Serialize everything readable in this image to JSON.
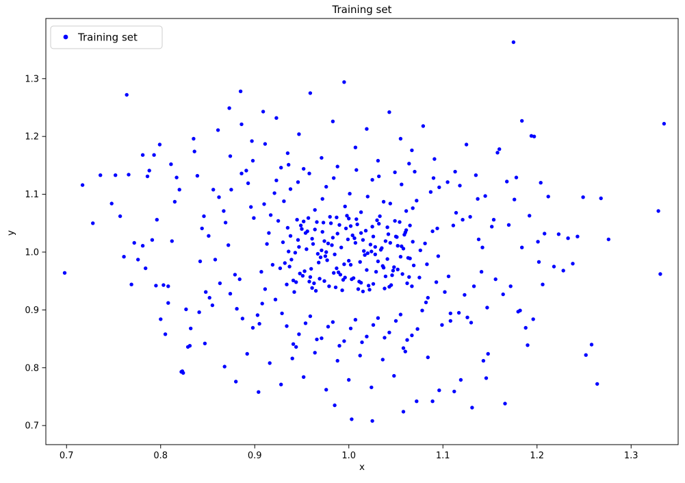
{
  "chart_data": {
    "type": "scatter",
    "title": "Training set",
    "xlabel": "x",
    "ylabel": "y",
    "legend": {
      "label": "Training set",
      "position": "upper left"
    },
    "marker_color": "#0000ff",
    "grid": false,
    "xlim": [
      0.678,
      1.35
    ],
    "ylim": [
      0.667,
      1.404
    ],
    "x_ticks": [
      0.7,
      0.8,
      0.9,
      1.0,
      1.1,
      1.2,
      1.3
    ],
    "y_ticks": [
      0.7,
      0.8,
      0.9,
      1.0,
      1.1,
      1.2,
      1.3
    ],
    "points": [
      [
        0.962,
        1.014
      ],
      [
        0.975,
        0.993
      ],
      [
        0.988,
        1.032
      ],
      [
        1.002,
        0.978
      ],
      [
        1.015,
        1.021
      ],
      [
        1.028,
        0.996
      ],
      [
        1.041,
        1.043
      ],
      [
        0.953,
        0.967
      ],
      [
        0.966,
        1.052
      ],
      [
        0.979,
        0.941
      ],
      [
        0.992,
        1.008
      ],
      [
        1.005,
        0.955
      ],
      [
        1.018,
        1.037
      ],
      [
        1.031,
        0.984
      ],
      [
        1.044,
        1.016
      ],
      [
        1.057,
        0.962
      ],
      [
        0.936,
        1.001
      ],
      [
        0.949,
        1.046
      ],
      [
        0.961,
        0.938
      ],
      [
        0.974,
        1.019
      ],
      [
        0.987,
        0.972
      ],
      [
        1.0,
        1.058
      ],
      [
        1.013,
        0.947
      ],
      [
        1.026,
        1.027
      ],
      [
        1.039,
        0.958
      ],
      [
        1.052,
        1.011
      ],
      [
        1.065,
        0.989
      ],
      [
        0.941,
        0.951
      ],
      [
        0.954,
        1.033
      ],
      [
        0.967,
        0.997
      ],
      [
        0.98,
        1.061
      ],
      [
        0.993,
        0.934
      ],
      [
        1.006,
        1.024
      ],
      [
        1.019,
        0.969
      ],
      [
        1.032,
        1.049
      ],
      [
        1.045,
        0.943
      ],
      [
        1.058,
        1.006
      ],
      [
        0.932,
        0.981
      ],
      [
        0.945,
        1.056
      ],
      [
        0.958,
        0.949
      ],
      [
        0.971,
        1.003
      ],
      [
        0.984,
        0.964
      ],
      [
        0.997,
        1.041
      ],
      [
        1.01,
        0.936
      ],
      [
        1.023,
        1.013
      ],
      [
        1.036,
        0.976
      ],
      [
        1.049,
        1.054
      ],
      [
        1.062,
        0.946
      ],
      [
        0.938,
        1.028
      ],
      [
        0.951,
        0.959
      ],
      [
        0.964,
        1.039
      ],
      [
        0.977,
        0.986
      ],
      [
        0.99,
        1.047
      ],
      [
        1.003,
        0.953
      ],
      [
        1.016,
        1.002
      ],
      [
        1.029,
        0.966
      ],
      [
        1.042,
        1.031
      ],
      [
        1.055,
        0.992
      ],
      [
        1.068,
        1.018
      ],
      [
        0.934,
        0.944
      ],
      [
        0.947,
        1.009
      ],
      [
        0.96,
        0.971
      ],
      [
        0.973,
        1.051
      ],
      [
        0.986,
        0.939
      ],
      [
        0.999,
        1.022
      ],
      [
        1.012,
        0.983
      ],
      [
        1.025,
        1.044
      ],
      [
        1.038,
        0.937
      ],
      [
        1.051,
        1.026
      ],
      [
        1.064,
        0.957
      ],
      [
        0.943,
        0.999
      ],
      [
        0.956,
        1.036
      ],
      [
        0.969,
        0.954
      ],
      [
        0.982,
        1.012
      ],
      [
        0.995,
        0.979
      ],
      [
        1.008,
        1.057
      ],
      [
        1.021,
        0.942
      ],
      [
        1.034,
        1.004
      ],
      [
        1.047,
        0.968
      ],
      [
        1.06,
        1.034
      ],
      [
        0.93,
        1.017
      ],
      [
        0.944,
        0.948
      ],
      [
        0.957,
        1.059
      ],
      [
        0.97,
        0.991
      ],
      [
        0.983,
        1.025
      ],
      [
        0.996,
        0.956
      ],
      [
        1.009,
        1.048
      ],
      [
        1.022,
        0.935
      ],
      [
        1.035,
        1.007
      ],
      [
        1.048,
        0.974
      ],
      [
        1.061,
        1.038
      ],
      [
        0.939,
        0.987
      ],
      [
        0.952,
        1.053
      ],
      [
        0.965,
        0.933
      ],
      [
        0.978,
        1.015
      ],
      [
        0.991,
        0.961
      ],
      [
        1.004,
        1.029
      ],
      [
        1.017,
        0.995
      ],
      [
        1.03,
        1.055
      ],
      [
        1.043,
        0.94
      ],
      [
        1.056,
        1.01
      ],
      [
        1.069,
        0.977
      ],
      [
        0.935,
        1.042
      ],
      [
        0.948,
        0.963
      ],
      [
        0.961,
        1.023
      ],
      [
        0.974,
        0.95
      ],
      [
        0.987,
        1.06
      ],
      [
        1.0,
        0.985
      ],
      [
        1.013,
        1.033
      ],
      [
        1.026,
        0.945
      ],
      [
        1.039,
        1.019
      ],
      [
        1.052,
        0.97
      ],
      [
        1.065,
        1.046
      ],
      [
        0.942,
        0.931
      ],
      [
        0.955,
        1.005
      ],
      [
        0.968,
        0.982
      ],
      [
        0.981,
        1.05
      ],
      [
        0.994,
        0.952
      ],
      [
        1.007,
        1.016
      ],
      [
        1.02,
        0.998
      ],
      [
        1.033,
        1.062
      ],
      [
        1.046,
        0.96
      ],
      [
        1.059,
        1.03
      ],
      [
        0.937,
        0.975
      ],
      [
        0.95,
        1.04
      ],
      [
        0.963,
        0.946
      ],
      [
        0.976,
        1.0
      ],
      [
        0.989,
        0.965
      ],
      [
        1.002,
        1.045
      ],
      [
        1.015,
        0.932
      ],
      [
        1.028,
        1.009
      ],
      [
        1.041,
        0.988
      ],
      [
        1.054,
        1.052
      ],
      [
        1.067,
        0.941
      ],
      [
        0.946,
        1.021
      ],
      [
        0.959,
        0.957
      ],
      [
        0.972,
        1.035
      ],
      [
        0.985,
        0.996
      ],
      [
        0.998,
        1.063
      ],
      [
        1.011,
        0.949
      ],
      [
        1.024,
        1.001
      ],
      [
        1.037,
        0.973
      ],
      [
        1.05,
        1.027
      ],
      [
        1.063,
        0.99
      ],
      [
        0.872,
        1.012
      ],
      [
        0.884,
        0.953
      ],
      [
        0.896,
        1.078
      ],
      [
        0.908,
        0.911
      ],
      [
        0.921,
        1.102
      ],
      [
        0.858,
        0.987
      ],
      [
        0.869,
        1.051
      ],
      [
        0.881,
        0.902
      ],
      [
        0.893,
        1.119
      ],
      [
        0.905,
        0.876
      ],
      [
        0.917,
        1.064
      ],
      [
        0.929,
        0.894
      ],
      [
        0.862,
        1.095
      ],
      [
        0.874,
        0.928
      ],
      [
        0.886,
        1.136
      ],
      [
        0.898,
        0.869
      ],
      [
        0.91,
        1.083
      ],
      [
        0.922,
        0.918
      ],
      [
        0.851,
        1.028
      ],
      [
        0.863,
        0.946
      ],
      [
        0.875,
        1.108
      ],
      [
        0.887,
        0.885
      ],
      [
        0.899,
        1.059
      ],
      [
        0.911,
        0.936
      ],
      [
        0.923,
        1.124
      ],
      [
        0.855,
        0.908
      ],
      [
        0.867,
        1.071
      ],
      [
        0.879,
        0.961
      ],
      [
        0.891,
        1.141
      ],
      [
        0.903,
        0.891
      ],
      [
        0.915,
        1.033
      ],
      [
        0.927,
        0.972
      ],
      [
        1.072,
        1.089
      ],
      [
        1.084,
        0.921
      ],
      [
        1.096,
        1.112
      ],
      [
        1.108,
        0.881
      ],
      [
        1.121,
        1.056
      ],
      [
        1.133,
        0.941
      ],
      [
        1.145,
        1.097
      ],
      [
        1.078,
        0.899
      ],
      [
        1.09,
        1.128
      ],
      [
        1.102,
        0.931
      ],
      [
        1.114,
        1.068
      ],
      [
        1.126,
        0.887
      ],
      [
        1.138,
        1.022
      ],
      [
        1.075,
        0.956
      ],
      [
        1.087,
        1.104
      ],
      [
        1.099,
        0.874
      ],
      [
        1.111,
        1.046
      ],
      [
        1.123,
        0.926
      ],
      [
        1.135,
        1.133
      ],
      [
        1.147,
        0.904
      ],
      [
        1.081,
        1.015
      ],
      [
        1.093,
        0.948
      ],
      [
        1.105,
        1.121
      ],
      [
        1.117,
        0.895
      ],
      [
        1.129,
        1.061
      ],
      [
        1.141,
        0.966
      ],
      [
        1.07,
        1.139
      ],
      [
        1.082,
        0.913
      ],
      [
        1.094,
        1.041
      ],
      [
        1.106,
        0.958
      ],
      [
        1.118,
        1.115
      ],
      [
        1.13,
        0.878
      ],
      [
        1.142,
        1.008
      ],
      [
        0.931,
        1.088
      ],
      [
        0.946,
        1.121
      ],
      [
        0.958,
        1.136
      ],
      [
        0.972,
        1.092
      ],
      [
        0.984,
        1.128
      ],
      [
        0.996,
        1.079
      ],
      [
        1.008,
        1.142
      ],
      [
        1.02,
        1.096
      ],
      [
        1.032,
        1.131
      ],
      [
        1.044,
        1.084
      ],
      [
        1.056,
        1.117
      ],
      [
        1.068,
        1.076
      ],
      [
        0.938,
        1.109
      ],
      [
        0.952,
        1.144
      ],
      [
        0.964,
        1.073
      ],
      [
        0.976,
        1.113
      ],
      [
        0.988,
        1.148
      ],
      [
        1.001,
        1.101
      ],
      [
        1.013,
        1.069
      ],
      [
        1.025,
        1.125
      ],
      [
        1.037,
        1.087
      ],
      [
        1.049,
        1.138
      ],
      [
        1.061,
        1.071
      ],
      [
        0.934,
        0.872
      ],
      [
        0.947,
        0.858
      ],
      [
        0.959,
        0.889
      ],
      [
        0.971,
        0.851
      ],
      [
        0.983,
        0.879
      ],
      [
        0.995,
        0.846
      ],
      [
        1.007,
        0.883
      ],
      [
        1.019,
        0.854
      ],
      [
        1.031,
        0.886
      ],
      [
        1.043,
        0.861
      ],
      [
        1.055,
        0.892
      ],
      [
        1.067,
        0.856
      ],
      [
        0.941,
        0.841
      ],
      [
        0.954,
        0.877
      ],
      [
        0.966,
        0.849
      ],
      [
        0.978,
        0.871
      ],
      [
        0.99,
        0.838
      ],
      [
        1.002,
        0.868
      ],
      [
        1.014,
        0.844
      ],
      [
        1.026,
        0.874
      ],
      [
        1.038,
        0.852
      ],
      [
        1.05,
        0.881
      ],
      [
        1.062,
        0.848
      ],
      [
        0.925,
        1.054
      ],
      [
        0.919,
        0.978
      ],
      [
        1.076,
        1.003
      ],
      [
        1.083,
        0.979
      ],
      [
        0.913,
        1.014
      ],
      [
        0.907,
        0.966
      ],
      [
        1.089,
        1.036
      ],
      [
        1.095,
        0.993
      ],
      [
        0.928,
        1.146
      ],
      [
        1.073,
        0.867
      ],
      [
        0.936,
        1.151
      ],
      [
        1.064,
        1.153
      ],
      [
        0.944,
        0.836
      ],
      [
        1.058,
        0.834
      ],
      [
        0.791,
        1.021
      ],
      [
        0.803,
        0.943
      ],
      [
        0.815,
        1.087
      ],
      [
        0.827,
        0.901
      ],
      [
        0.839,
        1.132
      ],
      [
        0.784,
        0.972
      ],
      [
        0.796,
        1.056
      ],
      [
        0.808,
        0.912
      ],
      [
        0.82,
        1.108
      ],
      [
        0.832,
        0.868
      ],
      [
        0.844,
        1.041
      ],
      [
        0.788,
        1.141
      ],
      [
        0.8,
        0.884
      ],
      [
        0.812,
        1.019
      ],
      [
        0.824,
        0.791
      ],
      [
        0.836,
        1.174
      ],
      [
        0.848,
        0.931
      ],
      [
        0.793,
        1.168
      ],
      [
        0.805,
        0.858
      ],
      [
        0.817,
        1.129
      ],
      [
        0.829,
        0.836
      ],
      [
        0.841,
        0.896
      ],
      [
        0.781,
        1.011
      ],
      [
        0.799,
        1.186
      ],
      [
        0.811,
        1.152
      ],
      [
        0.823,
        0.794
      ],
      [
        0.835,
        1.196
      ],
      [
        0.847,
        0.842
      ],
      [
        1.152,
        1.044
      ],
      [
        1.164,
        0.927
      ],
      [
        1.176,
        1.091
      ],
      [
        1.188,
        0.869
      ],
      [
        1.201,
        1.018
      ],
      [
        1.156,
        0.953
      ],
      [
        1.168,
        1.122
      ],
      [
        1.18,
        0.897
      ],
      [
        1.192,
        1.063
      ],
      [
        1.148,
        0.824
      ],
      [
        1.16,
        1.178
      ],
      [
        1.172,
        0.941
      ],
      [
        1.184,
        1.008
      ],
      [
        1.196,
        0.884
      ],
      [
        1.208,
        1.032
      ],
      [
        1.154,
        1.056
      ],
      [
        1.166,
        0.738
      ],
      [
        1.178,
        1.129
      ],
      [
        1.19,
        0.839
      ],
      [
        1.202,
        0.983
      ],
      [
        1.146,
        0.782
      ],
      [
        1.158,
        1.172
      ],
      [
        1.17,
        1.047
      ],
      [
        1.182,
        0.899
      ],
      [
        1.194,
        1.201
      ],
      [
        1.206,
        0.944
      ],
      [
        0.861,
        1.211
      ],
      [
        0.873,
        1.249
      ],
      [
        0.885,
        1.278
      ],
      [
        0.897,
        1.192
      ],
      [
        0.909,
        1.243
      ],
      [
        0.874,
        1.166
      ],
      [
        0.886,
        1.221
      ],
      [
        0.898,
        1.158
      ],
      [
        0.911,
        1.187
      ],
      [
        0.923,
        1.232
      ],
      [
        0.935,
        1.171
      ],
      [
        0.947,
        1.204
      ],
      [
        0.959,
        1.275
      ],
      [
        0.971,
        1.163
      ],
      [
        0.983,
        1.226
      ],
      [
        0.995,
        1.294
      ],
      [
        1.007,
        1.181
      ],
      [
        1.019,
        1.213
      ],
      [
        1.031,
        1.158
      ],
      [
        1.043,
        1.242
      ],
      [
        1.055,
        1.196
      ],
      [
        1.067,
        1.176
      ],
      [
        1.079,
        1.218
      ],
      [
        1.091,
        1.161
      ],
      [
        0.868,
        0.802
      ],
      [
        0.88,
        0.776
      ],
      [
        0.892,
        0.824
      ],
      [
        0.904,
        0.758
      ],
      [
        0.916,
        0.808
      ],
      [
        0.928,
        0.771
      ],
      [
        0.94,
        0.816
      ],
      [
        0.952,
        0.784
      ],
      [
        0.964,
        0.826
      ],
      [
        0.976,
        0.762
      ],
      [
        0.988,
        0.812
      ],
      [
        1.0,
        0.779
      ],
      [
        1.012,
        0.821
      ],
      [
        1.024,
        0.766
      ],
      [
        1.036,
        0.814
      ],
      [
        1.048,
        0.786
      ],
      [
        1.06,
        0.828
      ],
      [
        1.072,
        0.742
      ],
      [
        1.084,
        0.818
      ],
      [
        1.096,
        0.761
      ],
      [
        1.108,
        0.894
      ],
      [
        1.113,
        1.139
      ],
      [
        1.119,
        0.779
      ],
      [
        1.125,
        1.186
      ],
      [
        1.131,
        0.731
      ],
      [
        1.137,
        1.092
      ],
      [
        1.143,
        0.812
      ],
      [
        0.856,
        1.108
      ],
      [
        0.852,
        0.921
      ],
      [
        0.846,
        1.062
      ],
      [
        0.842,
        0.984
      ],
      [
        0.698,
        0.964
      ],
      [
        0.717,
        1.116
      ],
      [
        0.728,
        1.05
      ],
      [
        0.736,
        1.133
      ],
      [
        0.748,
        1.084
      ],
      [
        0.752,
        1.133
      ],
      [
        0.757,
        1.062
      ],
      [
        0.761,
        0.992
      ],
      [
        0.764,
        1.272
      ],
      [
        0.766,
        1.134
      ],
      [
        0.769,
        0.944
      ],
      [
        0.772,
        1.016
      ],
      [
        0.776,
        0.987
      ],
      [
        0.781,
        1.168
      ],
      [
        0.786,
        1.131
      ],
      [
        1.175,
        1.363
      ],
      [
        1.184,
        1.227
      ],
      [
        1.197,
        1.2
      ],
      [
        1.204,
        1.12
      ],
      [
        1.212,
        1.096
      ],
      [
        1.218,
        0.975
      ],
      [
        1.223,
        1.031
      ],
      [
        1.228,
        0.968
      ],
      [
        1.233,
        1.024
      ],
      [
        1.238,
        0.98
      ],
      [
        1.243,
        1.027
      ],
      [
        1.249,
        1.095
      ],
      [
        1.252,
        0.822
      ],
      [
        1.258,
        0.84
      ],
      [
        1.264,
        0.772
      ],
      [
        1.268,
        1.093
      ],
      [
        1.276,
        1.022
      ],
      [
        1.329,
        1.071
      ],
      [
        1.331,
        0.962
      ],
      [
        1.335,
        1.222
      ],
      [
        1.025,
        0.708
      ],
      [
        1.003,
        0.711
      ],
      [
        0.985,
        0.735
      ],
      [
        1.058,
        0.724
      ],
      [
        1.089,
        0.742
      ],
      [
        1.112,
        0.759
      ],
      [
        0.822,
        0.793
      ],
      [
        0.831,
        0.838
      ],
      [
        0.808,
        0.941
      ],
      [
        0.795,
        0.942
      ]
    ]
  }
}
